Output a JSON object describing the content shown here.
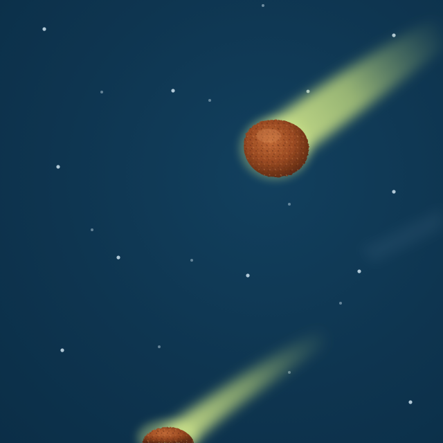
{
  "scene": {
    "background_color": "#0e3550",
    "tail_color": "#c8e08a",
    "meatball_color": "#9a4a22",
    "star_color": "#cfe3ee",
    "objects": [
      "meatball-comet",
      "meatball-comet",
      "stars"
    ]
  }
}
